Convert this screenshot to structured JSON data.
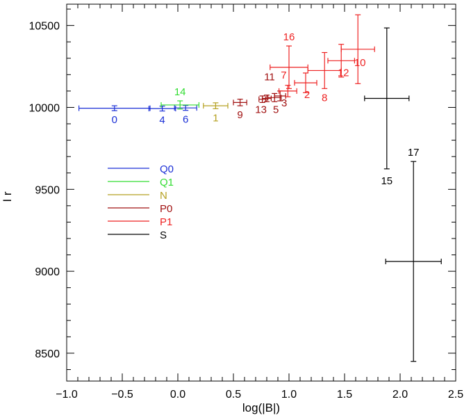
{
  "chart_data": {
    "type": "scatter",
    "title": "",
    "xlabel": "log(|B|)",
    "ylabel": "I r",
    "xlim": [
      -1.0,
      2.5
    ],
    "ylim": [
      8330,
      10630
    ],
    "x_ticks": [
      -1.0,
      -0.5,
      0.0,
      0.5,
      1.0,
      1.5,
      2.0,
      2.5
    ],
    "x_tick_labels": [
      "−1.0",
      "−0.5",
      "0.0",
      "0.5",
      "1.0",
      "1.5",
      "2.0",
      "2.5"
    ],
    "y_ticks": [
      8500,
      9000,
      9500,
      10000,
      10500
    ],
    "y_tick_labels": [
      "8500",
      "9000",
      "9500",
      "10000",
      "10500"
    ],
    "legend_position": "left-middle",
    "series": [
      {
        "name": "Q0",
        "color": "#1a2fd6",
        "points": [
          {
            "label": "0",
            "x": -0.57,
            "y": 9995,
            "xerr": [
              0.32,
              0.32
            ],
            "yerr": [
              15,
              15
            ]
          },
          {
            "label": "4",
            "x": -0.14,
            "y": 9993,
            "xerr": [
              0.12,
              0.12
            ],
            "yerr": [
              15,
              15
            ]
          },
          {
            "label": "6",
            "x": 0.07,
            "y": 9997,
            "xerr": [
              0.1,
              0.1
            ],
            "yerr": [
              15,
              15
            ]
          }
        ]
      },
      {
        "name": "Q1",
        "color": "#33dd33",
        "points": [
          {
            "label": "14",
            "x": 0.02,
            "y": 10015,
            "xerr": [
              0.17,
              0.17
            ],
            "yerr": [
              25,
              25
            ]
          }
        ]
      },
      {
        "name": "N",
        "color": "#b5a020",
        "points": [
          {
            "label": "1",
            "x": 0.34,
            "y": 10010,
            "xerr": [
              0.11,
              0.11
            ],
            "yerr": [
              18,
              18
            ]
          }
        ]
      },
      {
        "name": "P0",
        "color": "#a01010",
        "points": [
          {
            "label": "9",
            "x": 0.56,
            "y": 10030,
            "xerr": [
              0.06,
              0.06
            ],
            "yerr": [
              20,
              20
            ]
          },
          {
            "label": "13",
            "x": 0.76,
            "y": 10050,
            "xerr": [
              0.03,
              0.03
            ],
            "yerr": [
              20,
              20
            ]
          },
          {
            "label": "11",
            "x": 0.8,
            "y": 10055,
            "xerr": [
              0.04,
              0.04
            ],
            "yerr": [
              20,
              20
            ]
          },
          {
            "label": "5",
            "x": 0.87,
            "y": 10060,
            "xerr": [
              0.06,
              0.06
            ],
            "yerr": [
              25,
              25
            ]
          },
          {
            "label": "3",
            "x": 0.92,
            "y": 10070,
            "xerr": [
              0.05,
              0.05
            ],
            "yerr": [
              30,
              30
            ]
          }
        ]
      },
      {
        "name": "P1",
        "color": "#ee2222",
        "points": [
          {
            "label": "7",
            "x": 0.99,
            "y": 10100,
            "xerr": [
              0.08,
              0.08
            ],
            "yerr": [
              35,
              35
            ]
          },
          {
            "label": "16",
            "x": 1.0,
            "y": 10245,
            "xerr": [
              0.17,
              0.17
            ],
            "yerr": [
              130,
              130
            ]
          },
          {
            "label": "2",
            "x": 1.15,
            "y": 10150,
            "xerr": [
              0.1,
              0.1
            ],
            "yerr": [
              60,
              60
            ]
          },
          {
            "label": "8",
            "x": 1.32,
            "y": 10225,
            "xerr": [
              0.15,
              0.15
            ],
            "yerr": [
              110,
              110
            ]
          },
          {
            "label": "12",
            "x": 1.47,
            "y": 10285,
            "xerr": [
              0.12,
              0.12
            ],
            "yerr": [
              100,
              100
            ]
          },
          {
            "label": "10",
            "x": 1.62,
            "y": 10355,
            "xerr": [
              0.15,
              0.15
            ],
            "yerr": [
              210,
              210
            ]
          }
        ]
      },
      {
        "name": "S",
        "color": "#000000",
        "points": [
          {
            "label": "15",
            "x": 1.88,
            "y": 10055,
            "xerr": [
              0.2,
              0.2
            ],
            "yerr": [
              430,
              430
            ]
          },
          {
            "label": "17",
            "x": 2.12,
            "y": 9060,
            "xerr": [
              0.25,
              0.25
            ],
            "yerr": [
              610,
              610
            ]
          }
        ]
      }
    ]
  }
}
